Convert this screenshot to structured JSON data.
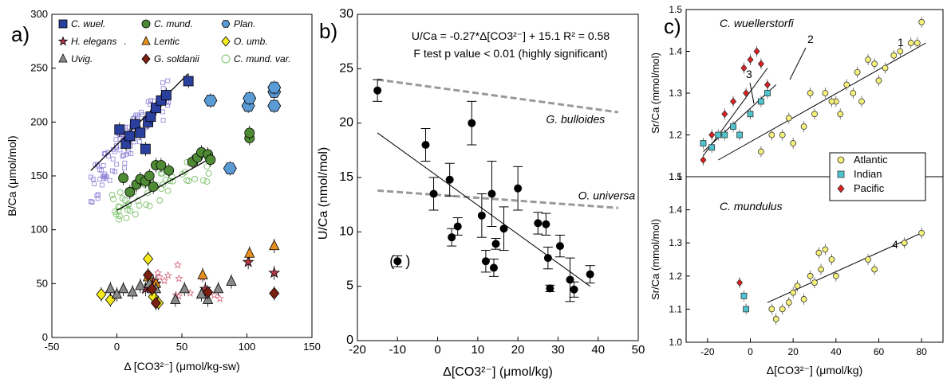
{
  "panel_a": {
    "letter": "a)",
    "legend": [
      {
        "label": "C. wuel.",
        "marker": "square",
        "color": "#2b3f9e"
      },
      {
        "label": "C. mund.",
        "marker": "circle",
        "color": "#4f8a35"
      },
      {
        "label": "Plan.",
        "marker": "hexagon",
        "color": "#5b9bd5"
      },
      {
        "label": "H. elegans",
        "marker": "star",
        "color": "#b0394a"
      },
      {
        "label": "Lentic",
        "marker": "triangle",
        "color": "#e8901f"
      },
      {
        "label": "O. umb.",
        "marker": "diamond",
        "color": "#f5ea1a"
      },
      {
        "label": "Uvig.",
        "marker": "triangle",
        "color": "#8a8a8a"
      },
      {
        "label": "G. soldanii",
        "marker": "diamond",
        "color": "#7a2010"
      },
      {
        "label": "C. mund. var.",
        "marker": "circle-open",
        "color": "#7cc16a"
      }
    ],
    "legend_dot": "."
  },
  "panel_b": {
    "letter": "b)",
    "equation": "U/Ca = -0.27*Δ[CO3²⁻] + 15.1  R² = 0.58",
    "ftest": "F test p value < 0.01 (highly significant)",
    "label_bulloides": "G. bulloides",
    "label_universa": "O. universa",
    "bracket_left": "(",
    "bracket_right": ")"
  },
  "panel_c": {
    "letter": "c)",
    "title_top": "C. wuellerstorfi",
    "title_bottom": "C. mundulus",
    "line_labels": [
      "1",
      "2",
      "3",
      "4"
    ],
    "legend": [
      {
        "label": "Atlantic",
        "color": "#f5f07a",
        "marker": "circle"
      },
      {
        "label": "Indian",
        "color": "#4fc4cf",
        "marker": "square"
      },
      {
        "label": "Pacific",
        "color": "#e02020",
        "marker": "diamond"
      }
    ]
  },
  "chart_data": [
    {
      "type": "scatter",
      "xlabel": "Δ [CO3²⁻] (μmol/kg-sw)",
      "ylabel": "B/Ca (μmol/mol)",
      "xlim": [
        -50,
        150
      ],
      "ylim": [
        0,
        300
      ],
      "xticks": [
        -50,
        0,
        50,
        100,
        150
      ],
      "yticks": [
        0,
        50,
        100,
        150,
        200,
        250,
        300
      ],
      "series": [
        {
          "name": "C. wuel.",
          "points": [
            [
              2,
              193
            ],
            [
              7,
              180
            ],
            [
              10,
              187
            ],
            [
              14,
              198
            ],
            [
              18,
              190
            ],
            [
              22,
              175
            ],
            [
              24,
              200
            ],
            [
              26,
              205
            ],
            [
              30,
              213
            ],
            [
              34,
              220
            ],
            [
              38,
              225
            ],
            [
              55,
              238
            ]
          ]
        },
        {
          "name": "C. mund.",
          "points": [
            [
              5,
              148
            ],
            [
              10,
              135
            ],
            [
              15,
              142
            ],
            [
              18,
              147
            ],
            [
              22,
              145
            ],
            [
              25,
              150
            ],
            [
              28,
              140
            ],
            [
              30,
              160
            ],
            [
              34,
              160
            ],
            [
              40,
              155
            ],
            [
              58,
              163
            ],
            [
              62,
              167
            ],
            [
              65,
              172
            ],
            [
              70,
              170
            ],
            [
              72,
              165
            ],
            [
              102,
              185
            ],
            [
              102,
              190
            ]
          ]
        },
        {
          "name": "Plan.",
          "points": [
            [
              72,
              220
            ],
            [
              101,
              215
            ],
            [
              102,
              222
            ],
            [
              121,
              215
            ],
            [
              121,
              228
            ],
            [
              121,
              232
            ],
            [
              87,
              157
            ]
          ]
        },
        {
          "name": "H. elegans",
          "points": [
            [
              22,
              45
            ],
            [
              25,
              48
            ],
            [
              28,
              52
            ],
            [
              30,
              50
            ],
            [
              68,
              45
            ],
            [
              101,
              70
            ],
            [
              121,
              60
            ]
          ]
        },
        {
          "name": "Lentic",
          "points": [
            [
              24,
              56
            ],
            [
              30,
              50
            ],
            [
              66,
              58
            ],
            [
              102,
              78
            ],
            [
              121,
              85
            ]
          ]
        },
        {
          "name": "O. umb.",
          "points": [
            [
              -12,
              40
            ],
            [
              -5,
              35
            ],
            [
              24,
              73
            ],
            [
              28,
              38
            ],
            [
              32,
              32
            ]
          ]
        },
        {
          "name": "Uvig.",
          "points": [
            [
              -5,
              45
            ],
            [
              0,
              40
            ],
            [
              5,
              45
            ],
            [
              12,
              42
            ],
            [
              18,
              48
            ],
            [
              25,
              50
            ],
            [
              30,
              45
            ],
            [
              45,
              35
            ],
            [
              52,
              45
            ],
            [
              65,
              40
            ],
            [
              70,
              35
            ],
            [
              78,
              45
            ],
            [
              88,
              52
            ]
          ]
        },
        {
          "name": "G. soldanii",
          "points": [
            [
              24,
              58
            ],
            [
              27,
              45
            ],
            [
              30,
              32
            ],
            [
              70,
              42
            ],
            [
              121,
              41
            ]
          ]
        }
      ]
    },
    {
      "type": "scatter",
      "xlabel": "Δ[CO3²⁻] (μmol/kg)",
      "ylabel": "U/Ca (nmol/mol)",
      "xlim": [
        -20,
        50
      ],
      "ylim": [
        0,
        30
      ],
      "xticks": [
        -20,
        -10,
        0,
        10,
        20,
        30,
        40,
        50
      ],
      "yticks": [
        0,
        5,
        10,
        15,
        20,
        25,
        30
      ],
      "series": [
        {
          "name": "data",
          "points": [
            [
              -15,
              23
            ],
            [
              -3,
              18
            ],
            [
              -1,
              13.5
            ],
            [
              3,
              14.8
            ],
            [
              3.5,
              9.5
            ],
            [
              5,
              10.5
            ],
            [
              8.5,
              20
            ],
            [
              11,
              11.5
            ],
            [
              12,
              7.3
            ],
            [
              13.5,
              13.5
            ],
            [
              14,
              6.7
            ],
            [
              14.5,
              8.9
            ],
            [
              16.5,
              10.3
            ],
            [
              20,
              14
            ],
            [
              25,
              10.8
            ],
            [
              27,
              10.7
            ],
            [
              27.5,
              7.6
            ],
            [
              28,
              4.8
            ],
            [
              30.5,
              8.7
            ],
            [
              33,
              5.6
            ],
            [
              34,
              4.7
            ],
            [
              38,
              6.1
            ],
            [
              -10,
              7.3
            ]
          ]
        },
        {
          "name": "fit",
          "points": [
            [
              -15,
              19.1
            ],
            [
              38,
              5.0
            ]
          ]
        },
        {
          "name": "G. bulloides",
          "points": [
            [
              -15,
              24
            ],
            [
              45,
              21
            ]
          ]
        },
        {
          "name": "O. universa",
          "points": [
            [
              -15,
              13.8
            ],
            [
              45,
              12.2
            ]
          ]
        }
      ]
    },
    {
      "type": "scatter",
      "xlabel": "Δ[CO3²⁻] (μmol/kg)",
      "ylabel": "Sr/Ca (mmol/mol)",
      "xlim": [
        -30,
        90
      ],
      "ylim": [
        1.1,
        1.5
      ],
      "xticks": [
        -20,
        0,
        20,
        40,
        60,
        80
      ],
      "yticks": [
        1.1,
        1.2,
        1.3,
        1.4,
        1.5
      ],
      "series": [
        {
          "name": "Atlantic",
          "points": [
            [
              10,
              1.2
            ],
            [
              18,
              1.24
            ],
            [
              25,
              1.22
            ],
            [
              30,
              1.25
            ],
            [
              35,
              1.3
            ],
            [
              40,
              1.28
            ],
            [
              45,
              1.32
            ],
            [
              50,
              1.35
            ],
            [
              55,
              1.38
            ],
            [
              60,
              1.33
            ],
            [
              63,
              1.36
            ],
            [
              67,
              1.39
            ],
            [
              70,
              1.4
            ],
            [
              75,
              1.42
            ],
            [
              78,
              1.42
            ],
            [
              80,
              1.47
            ],
            [
              38,
              1.28
            ],
            [
              42,
              1.25
            ],
            [
              28,
              1.3
            ],
            [
              20,
              1.18
            ],
            [
              15,
              1.2
            ],
            [
              5,
              1.16
            ],
            [
              48,
              1.3
            ],
            [
              52,
              1.28
            ],
            [
              58,
              1.37
            ]
          ]
        },
        {
          "name": "Indian",
          "points": [
            [
              -22,
              1.18
            ],
            [
              -18,
              1.17
            ],
            [
              -12,
              1.2
            ],
            [
              -8,
              1.22
            ],
            [
              -5,
              1.2
            ],
            [
              0,
              1.25
            ],
            [
              5,
              1.28
            ],
            [
              8,
              1.3
            ],
            [
              -15,
              1.2
            ]
          ]
        },
        {
          "name": "Pacific",
          "points": [
            [
              -22,
              1.14
            ],
            [
              -18,
              1.2
            ],
            [
              -12,
              1.25
            ],
            [
              -8,
              1.28
            ],
            [
              -3,
              1.36
            ],
            [
              0,
              1.38
            ],
            [
              3,
              1.4
            ],
            [
              5,
              1.37
            ],
            [
              8,
              1.32
            ],
            [
              -2,
              1.3
            ]
          ]
        }
      ]
    },
    {
      "type": "scatter",
      "xlabel": "Δ[CO3²⁻] (μmol/kg)",
      "ylabel": "Sr/Ca (mmol/mol)",
      "xlim": [
        -30,
        90
      ],
      "ylim": [
        1.0,
        1.5
      ],
      "xticks": [
        -20,
        0,
        20,
        40,
        60,
        80
      ],
      "yticks": [
        1.0,
        1.1,
        1.2,
        1.3,
        1.4,
        1.5
      ],
      "series": [
        {
          "name": "Atlantic",
          "points": [
            [
              10,
              1.1
            ],
            [
              12,
              1.07
            ],
            [
              18,
              1.12
            ],
            [
              20,
              1.15
            ],
            [
              25,
              1.13
            ],
            [
              28,
              1.2
            ],
            [
              30,
              1.18
            ],
            [
              33,
              1.22
            ],
            [
              35,
              1.28
            ],
            [
              38,
              1.25
            ],
            [
              40,
              1.2
            ],
            [
              32,
              1.27
            ],
            [
              55,
              1.25
            ],
            [
              58,
              1.22
            ],
            [
              72,
              1.3
            ],
            [
              80,
              1.33
            ],
            [
              22,
              1.17
            ],
            [
              15,
              1.1
            ]
          ]
        },
        {
          "name": "Indian",
          "points": [
            [
              -3,
              1.14
            ],
            [
              -2,
              1.1
            ]
          ]
        },
        {
          "name": "Pacific",
          "points": [
            [
              -5,
              1.18
            ]
          ]
        }
      ]
    }
  ]
}
